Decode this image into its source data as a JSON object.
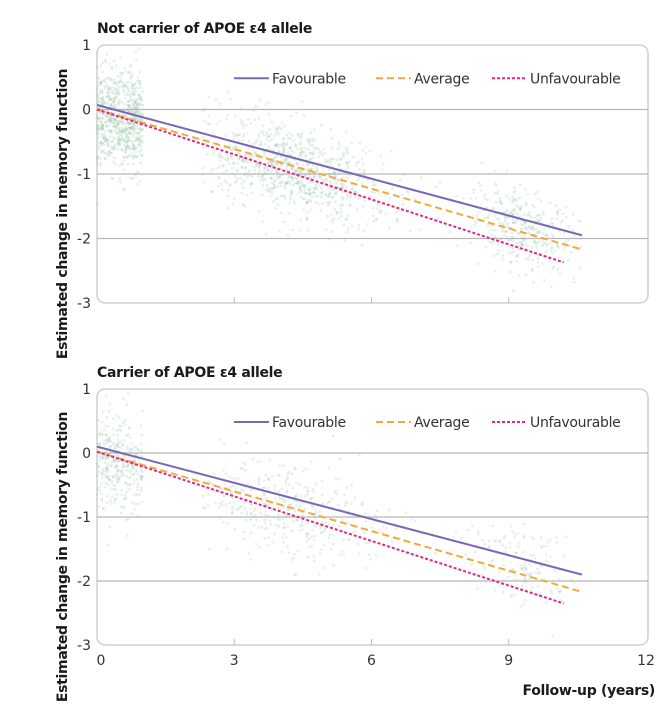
{
  "chart_data": [
    {
      "type": "line",
      "title": "Not carrier of APOE ε4 allele",
      "ylabel": "Estimated change in memory function",
      "xlabel": "Follow-up (years)",
      "xlim": [
        0,
        12
      ],
      "ylim": [
        -3,
        1
      ],
      "xticks": [
        "0",
        "3",
        "6",
        "9",
        "12"
      ],
      "yticks": [
        "1",
        "0",
        "-1",
        "-2",
        "-3"
      ],
      "grid": true,
      "legend_position": "top-right",
      "scatter_color": "#8fbf9f",
      "series": [
        {
          "name": "Favourable",
          "color": "#7b68b5",
          "style": "solid",
          "x": [
            0,
            10.6
          ],
          "y": [
            0.07,
            -1.95
          ]
        },
        {
          "name": "Average",
          "color": "#f2a93b",
          "style": "dashed",
          "x": [
            0,
            10.6
          ],
          "y": [
            0.0,
            -2.17
          ]
        },
        {
          "name": "Unfavourable",
          "color": "#e0288a",
          "style": "dotted",
          "x": [
            0,
            10.2
          ],
          "y": [
            0.0,
            -2.37
          ]
        }
      ]
    },
    {
      "type": "line",
      "title": "Carrier of APOE ε4 allele",
      "ylabel": "Estimated change in memory function",
      "xlabel": "Follow-up (years)",
      "xlim": [
        0,
        12
      ],
      "ylim": [
        -3,
        1
      ],
      "xticks": [
        "0",
        "3",
        "6",
        "9",
        "12"
      ],
      "yticks": [
        "1",
        "0",
        "-1",
        "-2",
        "-3"
      ],
      "grid": true,
      "legend_position": "top-right",
      "scatter_color": "#8fbf9f",
      "series": [
        {
          "name": "Favourable",
          "color": "#7b68b5",
          "style": "solid",
          "x": [
            0,
            10.6
          ],
          "y": [
            0.1,
            -1.9
          ]
        },
        {
          "name": "Average",
          "color": "#f2a93b",
          "style": "dashed",
          "x": [
            0,
            10.6
          ],
          "y": [
            0.02,
            -2.17
          ]
        },
        {
          "name": "Unfavourable",
          "color": "#e0288a",
          "style": "dotted",
          "x": [
            0,
            10.2
          ],
          "y": [
            0.02,
            -2.35
          ]
        }
      ]
    }
  ]
}
